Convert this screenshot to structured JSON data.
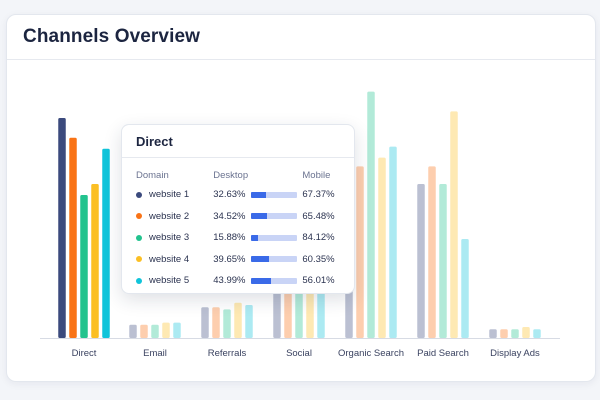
{
  "card": {
    "title": "Channels Overview"
  },
  "chart_data": {
    "type": "bar",
    "categories": [
      "Direct",
      "Email",
      "Referrals",
      "Social",
      "Organic Search",
      "Paid Search",
      "Display Ads"
    ],
    "series": [
      {
        "name": "website 1",
        "color": "#3b4a7d",
        "values": [
          100,
          6,
          14,
          25,
          60,
          70,
          4
        ]
      },
      {
        "name": "website 2",
        "color": "#f97316",
        "values": [
          91,
          6,
          14,
          25,
          78,
          78,
          4
        ]
      },
      {
        "name": "website 3",
        "color": "#22c38e",
        "values": [
          65,
          6,
          13,
          25,
          112,
          70,
          4
        ]
      },
      {
        "name": "website 4",
        "color": "#fbbf24",
        "values": [
          70,
          7,
          16,
          25,
          82,
          103,
          5
        ]
      },
      {
        "name": "website 5",
        "color": "#10c4da",
        "values": [
          86,
          7,
          15,
          25,
          87,
          45,
          4
        ]
      }
    ],
    "faded_categories": [
      "Email",
      "Referrals",
      "Social",
      "Organic Search",
      "Paid Search",
      "Display Ads"
    ],
    "grid": false,
    "legend": "none",
    "xlabel": "",
    "ylabel": ""
  },
  "tooltip": {
    "title": "Direct",
    "headers": {
      "domain": "Domain",
      "desktop": "Desktop",
      "mobile": "Mobile"
    },
    "rows": [
      {
        "domain": "website 1",
        "desktop": "32.63%",
        "mobile": "67.37%",
        "desktop_fraction": 0.3263,
        "color": "#3b4a7d"
      },
      {
        "domain": "website 2",
        "desktop": "34.52%",
        "mobile": "65.48%",
        "desktop_fraction": 0.3452,
        "color": "#f97316"
      },
      {
        "domain": "website 3",
        "desktop": "15.88%",
        "mobile": "84.12%",
        "desktop_fraction": 0.1588,
        "color": "#22c38e"
      },
      {
        "domain": "website 4",
        "desktop": "39.65%",
        "mobile": "60.35%",
        "desktop_fraction": 0.3965,
        "color": "#fbbf24"
      },
      {
        "domain": "website 5",
        "desktop": "43.99%",
        "mobile": "56.01%",
        "desktop_fraction": 0.4399,
        "color": "#10c4da"
      }
    ]
  }
}
